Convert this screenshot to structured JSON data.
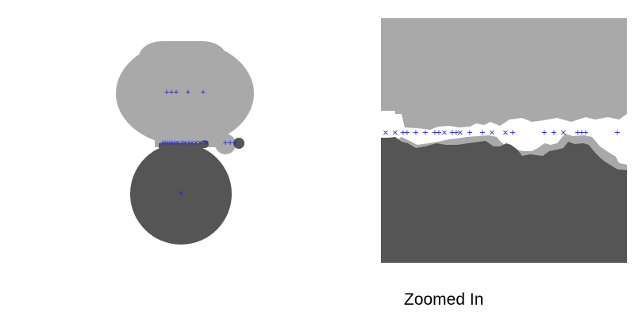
{
  "caption": "Zoomed In",
  "colors": {
    "background": "#ffffff",
    "upper_body": "#a9a9a9",
    "lower_body": "#555555",
    "marker": "#2222cc"
  },
  "markers": {
    "plus": "+",
    "cross": "×"
  }
}
